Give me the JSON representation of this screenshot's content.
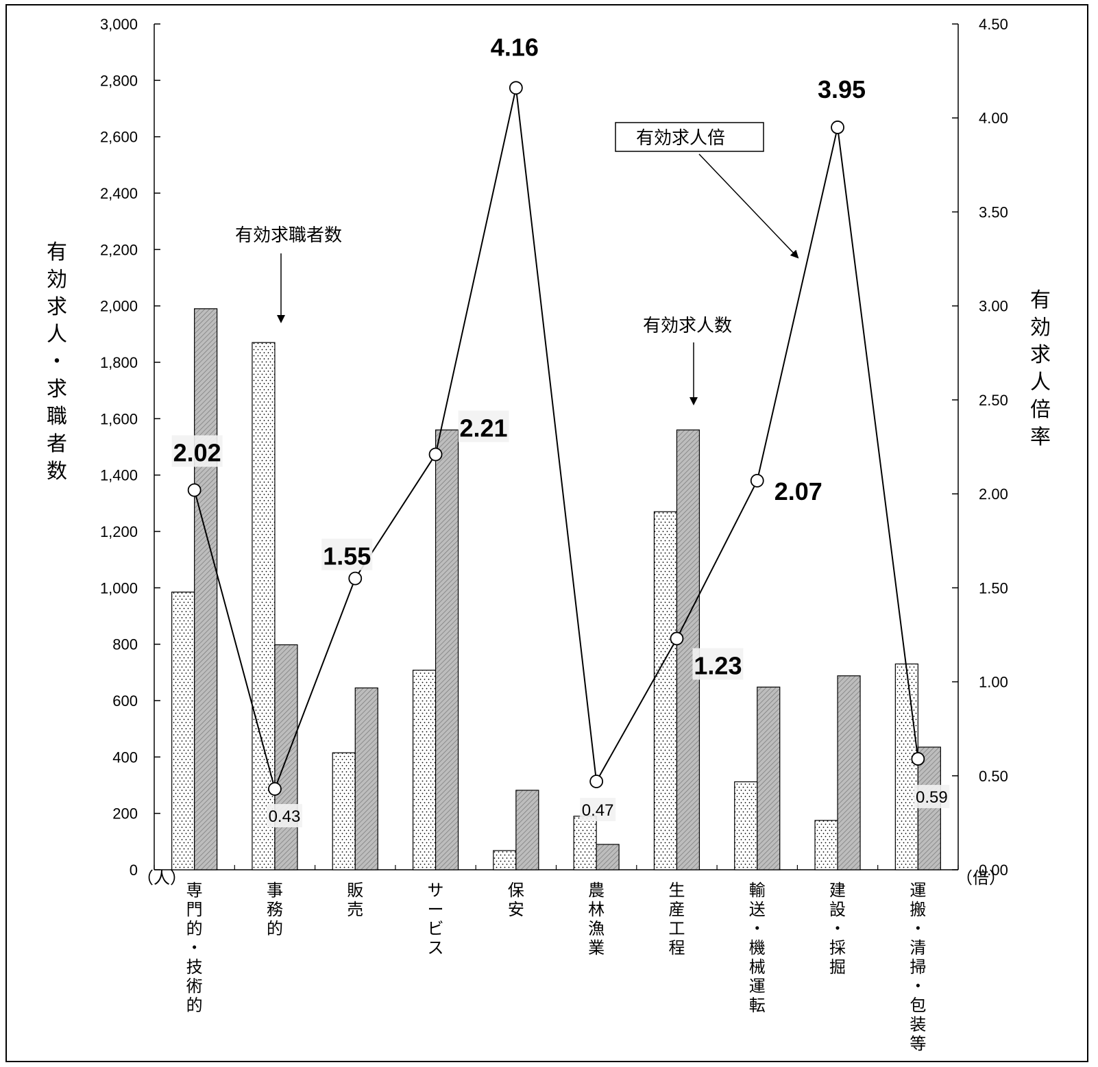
{
  "chart_data": {
    "type": "bar",
    "categories": [
      "専門的・技術的",
      "事務的",
      "販売",
      "サービス",
      "保安",
      "農林漁業",
      "生産工程",
      "輸送・機械運転",
      "建設・採掘",
      "運搬・清掃・包装等"
    ],
    "series": [
      {
        "name": "有効求職者数",
        "kind": "bar",
        "pattern": "dotted",
        "axis": "left",
        "values": [
          985,
          1870,
          415,
          708,
          68,
          190,
          1270,
          312,
          175,
          730
        ]
      },
      {
        "name": "有効求人数",
        "kind": "bar",
        "pattern": "hatched",
        "axis": "left",
        "values": [
          1990,
          798,
          645,
          1560,
          282,
          90,
          1560,
          648,
          688,
          435
        ]
      },
      {
        "name": "有効求人倍",
        "kind": "line",
        "axis": "right",
        "values": [
          2.02,
          0.43,
          1.55,
          2.21,
          4.16,
          0.47,
          1.23,
          2.07,
          3.95,
          0.59
        ],
        "labels": [
          "2.02",
          "0.43",
          "1.55",
          "2.21",
          "4.16",
          "0.47",
          "1.23",
          "2.07",
          "3.95",
          "0.59"
        ]
      }
    ],
    "ylabel": "有効求人・求職者数",
    "ylabel2": "有効求人倍率",
    "yunit": "（人）",
    "y2unit": "（倍）",
    "ylim": [
      0,
      3000
    ],
    "y2lim": [
      0,
      4.5
    ],
    "yticks": [
      "0",
      "200",
      "400",
      "600",
      "800",
      "1,000",
      "1,200",
      "1,400",
      "1,600",
      "1,800",
      "2,000",
      "2,200",
      "2,400",
      "2,600",
      "2,800",
      "3,000"
    ],
    "y2ticks": [
      "0.00",
      "0.50",
      "1.00",
      "1.50",
      "2.00",
      "2.50",
      "3.00",
      "3.50",
      "4.00",
      "4.50"
    ],
    "grid": false,
    "annotations": {
      "seekers": "有効求職者数",
      "openings": "有効求人数",
      "ratio": "有効求人倍"
    }
  },
  "colors": {
    "bar_fill_hatched": "#bdbdbd",
    "bar_fill_dotted": "#ffffff",
    "line": "#000000",
    "axis": "#000000"
  }
}
